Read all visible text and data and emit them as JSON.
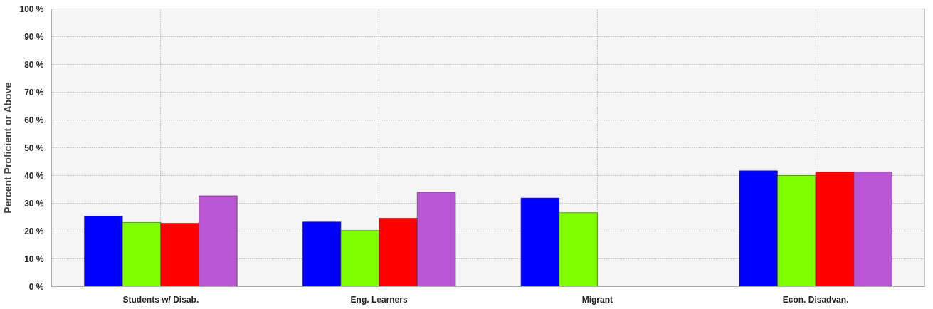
{
  "chart_data": {
    "type": "bar",
    "ylabel": "Percent Proficient or Above",
    "categories": [
      "Students w/ Disab.",
      "Eng. Learners",
      "Migrant",
      "Econ. Disadvan."
    ],
    "series": [
      {
        "color": "#0000ff",
        "values": [
          25.4,
          23.3,
          31.9,
          41.7
        ]
      },
      {
        "color": "#7fff00",
        "values": [
          23.1,
          20.2,
          26.6,
          40.0
        ]
      },
      {
        "color": "#ff0000",
        "values": [
          22.8,
          24.6,
          null,
          41.3
        ]
      },
      {
        "color": "#ba55d3",
        "values": [
          32.7,
          34.0,
          null,
          41.3
        ]
      }
    ],
    "ylim": [
      0,
      100
    ],
    "yticks": [
      {
        "value": 0,
        "label": "0 %"
      },
      {
        "value": 10,
        "label": "10 %"
      },
      {
        "value": 20,
        "label": "20 %"
      },
      {
        "value": 30,
        "label": "30 %"
      },
      {
        "value": 40,
        "label": "40 %"
      },
      {
        "value": 50,
        "label": "50 %"
      },
      {
        "value": 60,
        "label": "60 %"
      },
      {
        "value": 70,
        "label": "70 %"
      },
      {
        "value": 80,
        "label": "80 %"
      },
      {
        "value": 90,
        "label": "90 %"
      },
      {
        "value": 100,
        "label": "100 %"
      }
    ],
    "grid": true
  }
}
